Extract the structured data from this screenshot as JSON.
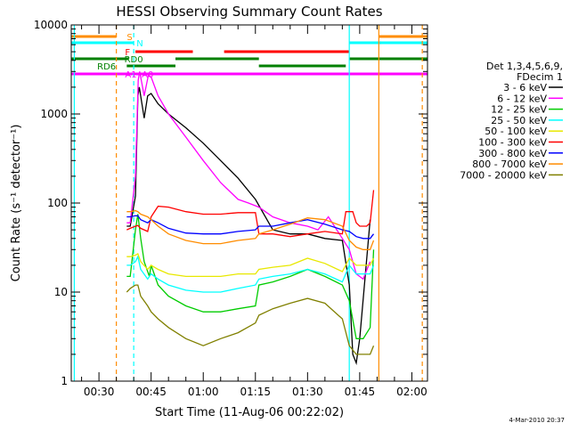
{
  "chart_data": {
    "type": "line",
    "title": "HESSI Observing Summary Count Rates",
    "xlabel": "Start Time (11-Aug-06 00:22:02)",
    "ylabel": "Count Rate (s⁻¹ detector⁻¹)",
    "y_scale": "log",
    "ylim": [
      1,
      10000
    ],
    "xlim_minutes": [
      22.03,
      124.5
    ],
    "x_ticks": [
      {
        "minute": 30,
        "label": "00:30"
      },
      {
        "minute": 45,
        "label": "00:45"
      },
      {
        "minute": 60,
        "label": "01:00"
      },
      {
        "minute": 75,
        "label": "01:15"
      },
      {
        "minute": 90,
        "label": "01:30"
      },
      {
        "minute": 105,
        "label": "01:45"
      },
      {
        "minute": 120,
        "label": "02:00"
      }
    ],
    "y_ticks": [
      {
        "value": 1,
        "label": "1"
      },
      {
        "value": 10,
        "label": "10"
      },
      {
        "value": 100,
        "label": "100"
      },
      {
        "value": 1000,
        "label": "1000"
      },
      {
        "value": 10000,
        "label": "10000"
      }
    ],
    "legend": {
      "placement": "right",
      "header": [
        "Det 1,3,4,5,6,9,",
        "FDecim 1"
      ],
      "entries": [
        {
          "label": "3 - 6 keV",
          "color": "#000000"
        },
        {
          "label": "6 - 12 keV",
          "color": "#ff00ff"
        },
        {
          "label": "12 - 25 keV",
          "color": "#00cc00"
        },
        {
          "label": "25 - 50 keV",
          "color": "#00ffff"
        },
        {
          "label": "50 - 100 keV",
          "color": "#e8e800"
        },
        {
          "label": "100 - 300 keV",
          "color": "#ff0000"
        },
        {
          "label": "300 - 800 keV",
          "color": "#0000ff"
        },
        {
          "label": "800 - 7000 keV",
          "color": "#ff8c00"
        },
        {
          "label": "7000 - 20000 keV",
          "color": "#808000"
        }
      ]
    },
    "series": [
      {
        "name": "3 - 6 keV",
        "color": "#000000",
        "x": [
          38,
          39,
          40.5,
          41.2,
          41.6,
          43,
          44,
          45,
          47,
          50,
          55,
          60,
          65,
          70,
          75,
          80,
          85,
          90,
          95,
          100,
          102,
          103,
          104,
          105,
          108
        ],
        "y": [
          55,
          55,
          120,
          1600,
          2000,
          900,
          1600,
          1700,
          1300,
          1000,
          700,
          470,
          300,
          190,
          110,
          50,
          45,
          45,
          40,
          38,
          12,
          2,
          1.6,
          3,
          65
        ]
      },
      {
        "name": "6 - 12 keV",
        "color": "#ff00ff",
        "x": [
          38,
          39,
          40.5,
          41.3,
          41.7,
          43,
          44.2,
          45,
          47,
          50,
          55,
          60,
          65,
          70,
          73,
          76,
          80,
          85,
          90,
          93,
          96,
          100,
          102,
          104,
          106,
          108
        ],
        "y": [
          60,
          60,
          200,
          2400,
          3000,
          1600,
          2700,
          2600,
          1600,
          1000,
          550,
          300,
          170,
          110,
          100,
          90,
          70,
          60,
          55,
          50,
          70,
          40,
          30,
          16,
          14,
          22
        ]
      },
      {
        "name": "12 - 25 keV",
        "color": "#00cc00",
        "x": [
          38,
          39,
          40.5,
          41.2,
          42,
          43,
          44.5,
          45,
          47,
          50,
          55,
          60,
          65,
          70,
          75,
          76,
          80,
          85,
          90,
          95,
          100,
          102,
          104,
          106,
          108,
          109
        ],
        "y": [
          15,
          15,
          50,
          75,
          40,
          22,
          15,
          20,
          12,
          9,
          7,
          6,
          6,
          6.5,
          7,
          12,
          13,
          15,
          18,
          15,
          12,
          8,
          3,
          3,
          4,
          30
        ]
      },
      {
        "name": "25 - 50 keV",
        "color": "#00ffff",
        "x": [
          38,
          39,
          40.5,
          41.2,
          42,
          44,
          45,
          47,
          50,
          55,
          60,
          65,
          70,
          75,
          76,
          80,
          85,
          90,
          95,
          100,
          102,
          104,
          106,
          108,
          109
        ],
        "y": [
          20,
          20,
          22,
          25,
          18,
          14,
          16,
          14,
          12,
          10.5,
          10,
          10,
          11,
          12,
          14,
          15,
          16,
          18,
          16,
          13,
          20,
          16,
          16,
          16,
          20
        ]
      },
      {
        "name": "50 - 100 keV",
        "color": "#e8e800",
        "x": [
          38,
          39,
          40.5,
          41.2,
          42,
          44,
          45,
          47,
          50,
          55,
          60,
          65,
          70,
          75,
          76,
          80,
          85,
          90,
          95,
          100,
          102,
          104,
          106,
          108,
          109
        ],
        "y": [
          25,
          25,
          26,
          27,
          22,
          18,
          20,
          18,
          16,
          15,
          15,
          15,
          16,
          16,
          18,
          19,
          20,
          24,
          21,
          17,
          24,
          20,
          20,
          20,
          24
        ]
      },
      {
        "name": "100 - 300 keV",
        "color": "#ff0000",
        "x": [
          38,
          39,
          40.5,
          41.2,
          42,
          44,
          45,
          47,
          50,
          55,
          60,
          65,
          70,
          75,
          76,
          80,
          85,
          90,
          95,
          100,
          101,
          103,
          104,
          105,
          107,
          108,
          109
        ],
        "y": [
          50,
          52,
          55,
          56,
          52,
          48,
          70,
          92,
          90,
          80,
          75,
          75,
          78,
          78,
          45,
          45,
          42,
          45,
          48,
          45,
          80,
          80,
          60,
          55,
          55,
          60,
          140
        ]
      },
      {
        "name": "300 - 800 keV",
        "color": "#0000ff",
        "x": [
          38,
          39,
          40.5,
          41.2,
          42,
          44,
          45,
          47,
          50,
          55,
          60,
          65,
          70,
          75,
          76,
          80,
          85,
          90,
          95,
          100,
          102,
          104,
          106,
          108,
          109
        ],
        "y": [
          70,
          70,
          72,
          72,
          65,
          60,
          65,
          60,
          52,
          46,
          45,
          45,
          48,
          50,
          55,
          55,
          60,
          65,
          58,
          50,
          48,
          42,
          40,
          40,
          45
        ]
      },
      {
        "name": "800 - 7000 keV",
        "color": "#ff8c00",
        "x": [
          38,
          39,
          40.5,
          41.2,
          42,
          44,
          45,
          47,
          50,
          55,
          60,
          65,
          70,
          75,
          76,
          80,
          85,
          90,
          95,
          100,
          102,
          104,
          106,
          108,
          109
        ],
        "y": [
          80,
          80,
          82,
          80,
          75,
          70,
          65,
          55,
          45,
          38,
          35,
          35,
          38,
          40,
          45,
          50,
          58,
          68,
          65,
          55,
          38,
          32,
          30,
          30,
          38
        ]
      },
      {
        "name": "7000 - 20000 keV",
        "color": "#808000",
        "x": [
          38,
          39,
          40.5,
          41.2,
          42,
          44,
          45,
          47,
          50,
          55,
          60,
          65,
          70,
          75,
          76,
          80,
          85,
          90,
          95,
          100,
          102,
          104,
          106,
          108,
          109
        ],
        "y": [
          10,
          11,
          12,
          12,
          9,
          7,
          6,
          5,
          4,
          3,
          2.5,
          3,
          3.5,
          4.5,
          5.5,
          6.5,
          7.5,
          8.5,
          7.5,
          5,
          2.5,
          2,
          2,
          2,
          2.5
        ]
      }
    ],
    "flag_lines": [
      {
        "label": "S",
        "color": "#ff8c00",
        "segments": [
          [
            22.03,
            35
          ],
          [
            110.5,
            124.5
          ]
        ]
      },
      {
        "label": "N",
        "color": "#00ffff",
        "segments": [
          [
            22.03,
            40
          ],
          [
            102,
            124.5
          ]
        ]
      },
      {
        "label": "F",
        "color": "#ff0000",
        "segments": [
          [
            40.5,
            57
          ],
          [
            66,
            102
          ]
        ]
      },
      {
        "label": "RD0",
        "color": "#008000",
        "segments": [
          [
            22.03,
            38.5
          ],
          [
            52,
            76
          ],
          [
            102,
            124.5
          ]
        ]
      },
      {
        "label": "RD6",
        "color": "#008000",
        "segments": [
          [
            38,
            52
          ],
          [
            76,
            101
          ]
        ]
      },
      {
        "label": "A1",
        "color": "#ff00ff",
        "segments": [
          [
            22.03,
            124.5
          ]
        ]
      }
    ],
    "vertical_markers": [
      {
        "minute": 22.9,
        "color": "#00ffff",
        "style": "solid"
      },
      {
        "minute": 35,
        "color": "#ff8c00",
        "style": "dashed"
      },
      {
        "minute": 40,
        "color": "#00ffff",
        "style": "dashed"
      },
      {
        "minute": 102,
        "color": "#00ffff",
        "style": "solid"
      },
      {
        "minute": 110.5,
        "color": "#ff8c00",
        "style": "solid"
      },
      {
        "minute": 123,
        "color": "#ff8c00",
        "style": "dashed"
      }
    ],
    "attenuator_label": "A0"
  },
  "footer": {
    "timestamp": "4-Mar-2010 20:37"
  }
}
